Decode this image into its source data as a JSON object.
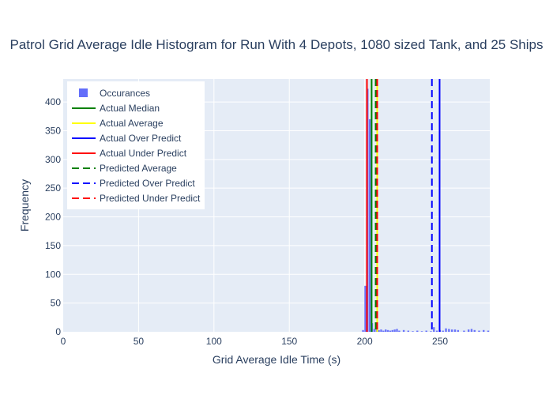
{
  "chart_data": {
    "type": "bar",
    "title": "Patrol Grid Average Idle Histogram for Run With 4 Depots, 1080 sized Tank, and 25 Ships",
    "xlabel": "Grid Average Idle Time (s)",
    "ylabel": "Frequency",
    "xlim": [
      0,
      283
    ],
    "ylim": [
      0,
      440
    ],
    "xticks": [
      0,
      50,
      100,
      150,
      200,
      250
    ],
    "yticks": [
      0,
      50,
      100,
      150,
      200,
      250,
      300,
      350,
      400
    ],
    "grid": true,
    "legend_position": "top-left",
    "bar_width": 1.4,
    "histogram": {
      "name": "Occurances",
      "color": "#636efa",
      "x": [
        199,
        200.5,
        202,
        203.5,
        205,
        206.5,
        208,
        209.5,
        211,
        212.5,
        214,
        215.5,
        217,
        218.5,
        220,
        221.5,
        223,
        226,
        229,
        232,
        235,
        238,
        241,
        244,
        246,
        248,
        250,
        252,
        254,
        256,
        258,
        260,
        262,
        266,
        269,
        271,
        273,
        276,
        279,
        282
      ],
      "values": [
        3,
        80,
        423,
        370,
        15,
        5,
        12,
        3,
        4,
        2,
        4,
        3,
        2,
        3,
        4,
        5,
        2,
        3,
        2,
        1,
        2,
        1,
        2,
        1,
        8,
        2,
        3,
        2,
        6,
        5,
        4,
        4,
        3,
        2,
        4,
        5,
        3,
        2,
        3,
        2
      ]
    },
    "lines": [
      {
        "name": "Actual Median",
        "x": 204.6,
        "color": "#008000",
        "dash": "solid"
      },
      {
        "name": "Actual Average",
        "x": 208.3,
        "color": "#ffff00",
        "dash": "solid"
      },
      {
        "name": "Actual Over Predict",
        "x": 249.7,
        "color": "#0000ff",
        "dash": "solid"
      },
      {
        "name": "Actual Under Predict",
        "x": 201.5,
        "color": "#ff0000",
        "dash": "solid"
      },
      {
        "name": "Predicted Average",
        "x": 207.3,
        "color": "#008000",
        "dash": "dash"
      },
      {
        "name": "Predicted Over Predict",
        "x": 244.6,
        "color": "#0000ff",
        "dash": "dash"
      },
      {
        "name": "Predicted Under Predict",
        "x": 208.3,
        "color": "#ff0000",
        "dash": "dash"
      }
    ]
  }
}
